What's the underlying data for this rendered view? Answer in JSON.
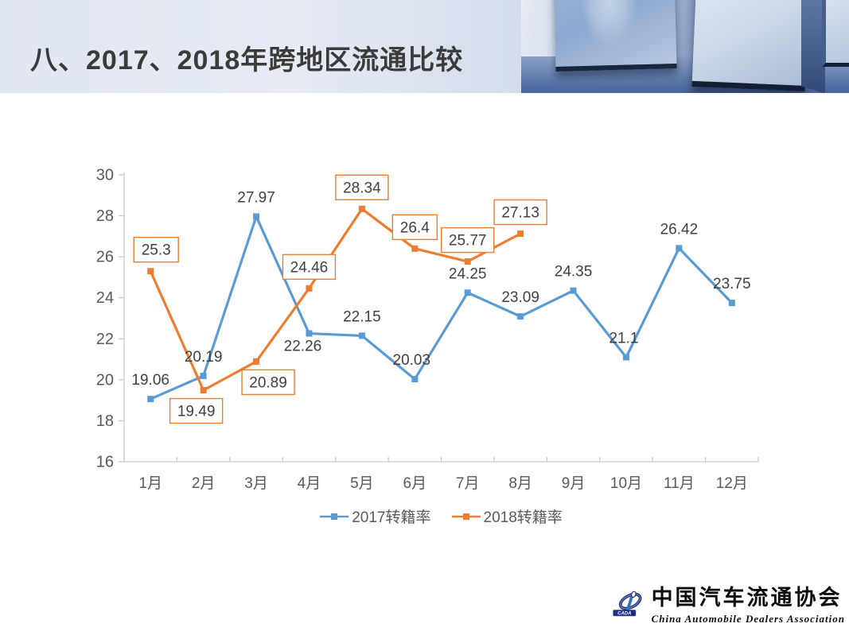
{
  "slide": {
    "title": "八、2017、2018年跨地区流通比较"
  },
  "chart_data": {
    "type": "line",
    "categories": [
      "1月",
      "2月",
      "3月",
      "4月",
      "5月",
      "6月",
      "7月",
      "8月",
      "9月",
      "10月",
      "11月",
      "12月"
    ],
    "series": [
      {
        "name": "2017转籍率",
        "color": "#5B9BD5",
        "values": [
          19.06,
          20.19,
          27.97,
          22.26,
          22.15,
          20.03,
          24.25,
          23.09,
          24.35,
          21.1,
          26.42,
          23.75
        ],
        "label_boxed": false,
        "label_below": [
          false,
          false,
          false,
          true,
          false,
          false,
          false,
          false,
          false,
          false,
          false,
          false
        ],
        "label_dx": [
          0,
          0,
          0,
          -8,
          0,
          -4,
          0,
          0,
          0,
          -3,
          0,
          0
        ]
      },
      {
        "name": "2018转籍率",
        "color": "#ED7D31",
        "values": [
          25.3,
          19.49,
          20.89,
          24.46,
          28.34,
          26.4,
          25.77,
          27.13
        ],
        "label_boxed": true,
        "label_below": [
          false,
          true,
          true,
          false,
          false,
          false,
          false,
          false
        ],
        "label_dx": [
          7,
          -9,
          15,
          0,
          0,
          0,
          0,
          0
        ]
      }
    ],
    "title": "",
    "xlabel": "",
    "ylabel": "",
    "ylim": [
      16,
      30
    ],
    "ytick_step": 2,
    "grid": false,
    "legend_position": "bottom",
    "axis_color": "#c9c9c9",
    "tick_label_color": "#595959",
    "data_label_color": "#404040"
  },
  "logo": {
    "abbr": "CADA",
    "cn": "中国汽车流通协会",
    "en": "China Automobile Dealers Association"
  }
}
